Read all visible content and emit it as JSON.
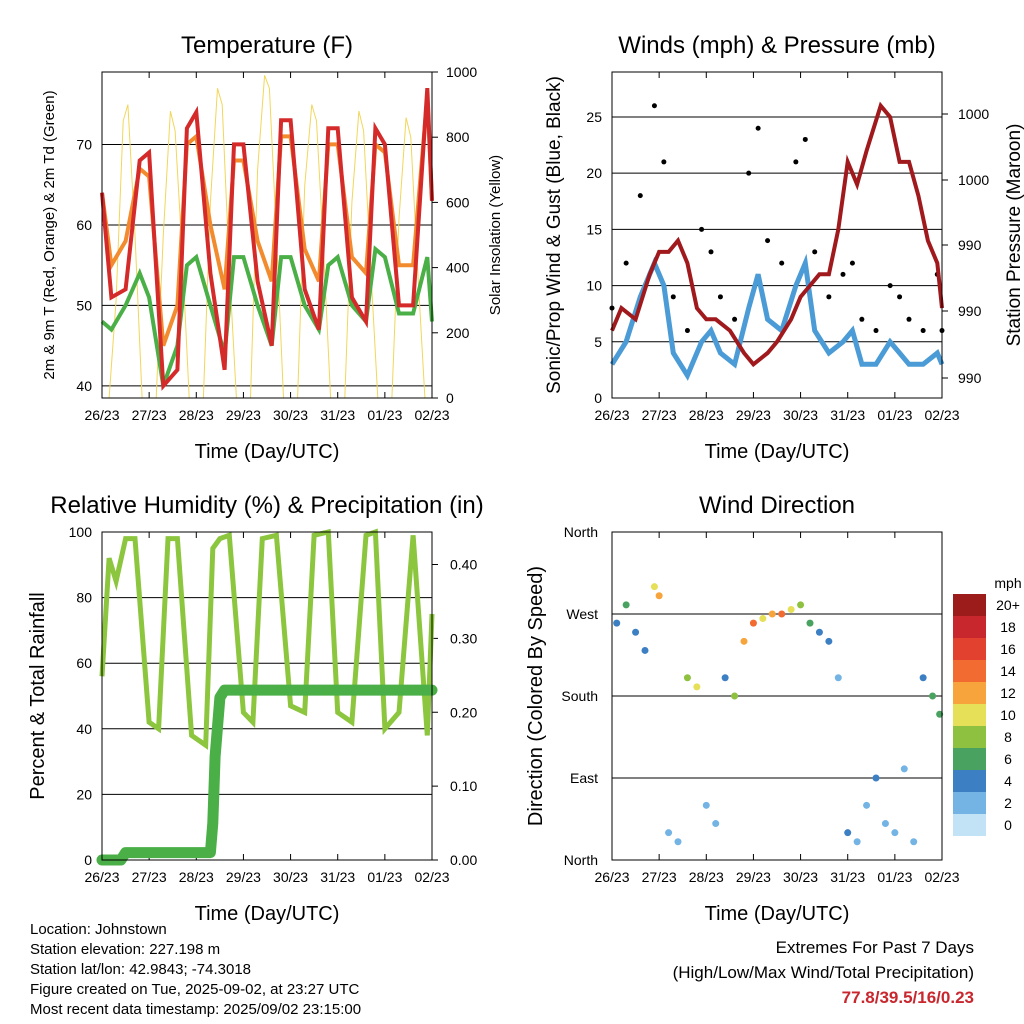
{
  "panels": {
    "temperature": {
      "title": "Temperature (F)",
      "xlabel": "Time (Day/UTC)",
      "ylabel_left": "2m & 9m T (Red, Orange) & 2m Td (Green)",
      "ylabel_right": "Solar Insolation (Yellow)"
    },
    "winds": {
      "title": "Winds (mph) & Pressure (mb)",
      "xlabel": "Time (Day/UTC)",
      "ylabel_left": "Sonic/Prop Wind & Gust (Blue, Black)",
      "ylabel_right": "Station Pressure (Maroon)"
    },
    "humidity": {
      "title": "Relative Humidity (%) & Precipitation (in)",
      "xlabel": "Time (Day/UTC)",
      "ylabel_left": "Percent & Total Rainfall"
    },
    "direction": {
      "title": "Wind Direction",
      "xlabel": "Time (Day/UTC)",
      "ylabel_left": "Direction (Colored By Speed)",
      "colorbar_title": "mph"
    }
  },
  "info": {
    "location": "Location: Johnstown",
    "elevation": "Station elevation: 227.198 m",
    "latlon": "Station lat/lon: 42.9843; -74.3018",
    "created": "Figure created on Tue, 2025-09-02, at 23:27 UTC",
    "recent": "Most recent data timestamp: 2025/09/02 23:15:00"
  },
  "extremes": {
    "line1": "Extremes For Past 7 Days",
    "line2": "(High/Low/Max Wind/Total Precipitation)",
    "values": "77.8/39.5/16/0.23"
  },
  "colors": {
    "temp2m": "#d42a2a",
    "temp9m": "#f28a2e",
    "dewpoint": "#4aaf46",
    "solar": "#f2d65a",
    "wind": "#4a9bd6",
    "gust": "#000000",
    "pressure": "#a0191d",
    "rh": "#8cc63f",
    "precip": "#4aaf46"
  },
  "chart_data": [
    {
      "type": "line",
      "title": "Temperature (F)",
      "xlabel": "Time (Day/UTC)",
      "ylabel": "2m & 9m T (Red, Orange) & 2m Td (Green)",
      "y2label": "Solar Insolation (Yellow)",
      "x_ticks": [
        "26/23",
        "27/23",
        "28/23",
        "29/23",
        "30/23",
        "31/23",
        "01/23",
        "02/23"
      ],
      "y_ticks": [
        40,
        50,
        60,
        70
      ],
      "y2_ticks": [
        0,
        200,
        400,
        600,
        800,
        1000
      ],
      "ylim": [
        38.5,
        79
      ],
      "y2lim": [
        0,
        1000
      ],
      "xlim": [
        0,
        7
      ],
      "series": [
        {
          "name": "2m T (Red)",
          "x": [
            0,
            0.2,
            0.5,
            0.8,
            1.0,
            1.3,
            1.6,
            1.8,
            2.0,
            2.3,
            2.6,
            2.8,
            3.0,
            3.3,
            3.6,
            3.8,
            4.0,
            4.3,
            4.6,
            4.8,
            5.0,
            5.3,
            5.6,
            5.8,
            6.0,
            6.3,
            6.6,
            6.9,
            7.0
          ],
          "values": [
            64,
            51,
            52,
            68,
            69,
            40,
            42,
            72,
            74,
            54,
            42,
            70,
            70,
            53,
            45,
            73,
            73,
            52,
            47,
            72,
            72,
            51,
            48,
            72,
            70,
            50,
            50,
            77,
            63
          ]
        },
        {
          "name": "9m T (Orange)",
          "x": [
            0,
            0.2,
            0.5,
            0.8,
            1.0,
            1.3,
            1.6,
            1.8,
            2.0,
            2.3,
            2.6,
            2.8,
            3.0,
            3.3,
            3.6,
            3.8,
            4.0,
            4.3,
            4.6,
            4.8,
            5.0,
            5.3,
            5.6,
            5.8,
            6.0,
            6.3,
            6.6,
            6.9,
            7.0
          ],
          "values": [
            64,
            55,
            58,
            67,
            66,
            45,
            50,
            70,
            71,
            60,
            52,
            68,
            68,
            58,
            53,
            71,
            71,
            57,
            53,
            70,
            70,
            56,
            54,
            70,
            69,
            55,
            55,
            76,
            63
          ]
        },
        {
          "name": "2m Td (Green)",
          "x": [
            0,
            0.2,
            0.5,
            0.8,
            1.0,
            1.3,
            1.6,
            1.8,
            2.0,
            2.3,
            2.6,
            2.8,
            3.0,
            3.3,
            3.6,
            3.8,
            4.0,
            4.3,
            4.6,
            4.8,
            5.0,
            5.3,
            5.6,
            5.8,
            6.0,
            6.3,
            6.6,
            6.9,
            7.0
          ],
          "values": [
            48,
            47,
            50,
            54,
            51,
            40,
            45,
            55,
            56,
            50,
            44,
            56,
            56,
            50,
            45,
            56,
            56,
            50,
            47,
            55,
            56,
            50,
            48,
            57,
            56,
            49,
            49,
            56,
            48
          ]
        },
        {
          "name": "Solar Insolation (Yellow)",
          "x": [
            0.15,
            0.3,
            0.45,
            0.55,
            0.7,
            0.85,
            1.15,
            1.3,
            1.45,
            1.55,
            1.7,
            1.85,
            2.15,
            2.3,
            2.45,
            2.55,
            2.7,
            2.85,
            3.15,
            3.3,
            3.45,
            3.55,
            3.7,
            3.85,
            4.15,
            4.3,
            4.45,
            4.55,
            4.7,
            4.85,
            5.15,
            5.3,
            5.45,
            5.55,
            5.7,
            5.85,
            6.15,
            6.3,
            6.45,
            6.55,
            6.7,
            6.85
          ],
          "values": [
            0,
            300,
            850,
            900,
            500,
            0,
            0,
            500,
            880,
            820,
            450,
            0,
            0,
            600,
            950,
            900,
            400,
            0,
            0,
            700,
            990,
            950,
            500,
            0,
            0,
            650,
            900,
            850,
            450,
            0,
            0,
            600,
            880,
            820,
            400,
            0,
            0,
            550,
            860,
            800,
            380,
            0
          ]
        }
      ]
    },
    {
      "type": "scatter",
      "title": "Winds (mph) & Pressure (mb)",
      "xlabel": "Time (Day/UTC)",
      "ylabel": "Sonic/Prop Wind & Gust (Blue, Black)",
      "y2label": "Station Pressure (Maroon)",
      "x_ticks": [
        "26/23",
        "27/23",
        "28/23",
        "29/23",
        "30/23",
        "31/23",
        "01/23",
        "02/23"
      ],
      "y_ticks": [
        0,
        5,
        10,
        15,
        20,
        25
      ],
      "y2_tick_labels": [
        "990",
        "990",
        "990",
        "1000",
        "1000"
      ],
      "ylim": [
        0,
        29
      ],
      "xlim": [
        0,
        7
      ],
      "series": [
        {
          "name": "Wind (Blue)",
          "x": [
            0,
            0.3,
            0.6,
            0.9,
            1.1,
            1.3,
            1.6,
            1.9,
            2.1,
            2.3,
            2.6,
            2.9,
            3.1,
            3.3,
            3.6,
            3.9,
            4.1,
            4.3,
            4.6,
            4.9,
            5.1,
            5.3,
            5.6,
            5.9,
            6.1,
            6.3,
            6.6,
            6.9,
            7.0
          ],
          "values": [
            3,
            5,
            9,
            12,
            10,
            4,
            2,
            5,
            6,
            4,
            3,
            8,
            11,
            7,
            6,
            10,
            12,
            6,
            4,
            5,
            6,
            3,
            3,
            5,
            4,
            3,
            3,
            4,
            3
          ]
        },
        {
          "name": "Gust (Black)",
          "x": [
            0,
            0.3,
            0.6,
            0.9,
            1.1,
            1.3,
            1.6,
            1.9,
            2.1,
            2.3,
            2.6,
            2.9,
            3.1,
            3.3,
            3.6,
            3.9,
            4.1,
            4.3,
            4.6,
            4.9,
            5.1,
            5.3,
            5.6,
            5.9,
            6.1,
            6.3,
            6.6,
            6.9,
            7.0
          ],
          "values": [
            8,
            12,
            18,
            26,
            21,
            9,
            6,
            15,
            13,
            9,
            7,
            20,
            24,
            14,
            12,
            21,
            23,
            13,
            9,
            11,
            12,
            7,
            6,
            10,
            9,
            7,
            6,
            11,
            6
          ]
        },
        {
          "name": "Station Pressure (Maroon)",
          "x": [
            0,
            0.2,
            0.5,
            0.8,
            1.0,
            1.2,
            1.4,
            1.6,
            1.8,
            2.0,
            2.2,
            2.5,
            2.8,
            3.0,
            3.3,
            3.5,
            3.8,
            4.0,
            4.2,
            4.4,
            4.6,
            4.8,
            5.0,
            5.2,
            5.4,
            5.7,
            5.9,
            6.1,
            6.3,
            6.5,
            6.7,
            6.9,
            7.0
          ],
          "values": [
            6,
            8,
            7,
            11,
            13,
            13,
            14,
            12,
            8,
            7,
            7,
            6,
            4,
            3,
            4,
            5,
            7,
            9,
            10,
            11,
            11,
            15,
            21,
            19,
            22,
            26,
            25,
            21,
            21,
            18,
            14,
            12,
            8
          ]
        }
      ]
    },
    {
      "type": "line",
      "title": "Relative Humidity (%) & Precipitation (in)",
      "xlabel": "Time (Day/UTC)",
      "ylabel": "Percent & Total Rainfall",
      "x_ticks": [
        "26/23",
        "27/23",
        "28/23",
        "29/23",
        "30/23",
        "31/23",
        "01/23",
        "02/23"
      ],
      "y_ticks": [
        0,
        20,
        40,
        60,
        80,
        100
      ],
      "y2_ticks": [
        0.0,
        0.1,
        0.2,
        0.3,
        0.4
      ],
      "ylim": [
        0,
        100
      ],
      "y2lim": [
        0,
        0.444
      ],
      "xlim": [
        0,
        7
      ],
      "series": [
        {
          "name": "Relative Humidity",
          "x": [
            0,
            0.15,
            0.3,
            0.5,
            0.7,
            1.0,
            1.2,
            1.4,
            1.6,
            1.9,
            2.2,
            2.35,
            2.5,
            2.7,
            3.0,
            3.2,
            3.4,
            3.7,
            4.0,
            4.3,
            4.5,
            4.8,
            5.0,
            5.3,
            5.6,
            5.8,
            6.0,
            6.3,
            6.6,
            6.9,
            7.0
          ],
          "values": [
            56,
            92,
            85,
            98,
            98,
            42,
            40,
            98,
            98,
            38,
            35,
            95,
            98,
            99,
            45,
            42,
            98,
            99,
            47,
            45,
            99,
            100,
            45,
            42,
            99,
            100,
            40,
            45,
            99,
            38,
            75
          ]
        },
        {
          "name": "Total Precipitation",
          "x": [
            0,
            0.4,
            0.5,
            1.0,
            1.5,
            2.3,
            2.35,
            2.4,
            2.45,
            2.5,
            2.6,
            3.0,
            5.0,
            7.0
          ],
          "values": [
            0.0,
            0.0,
            0.01,
            0.01,
            0.01,
            0.01,
            0.05,
            0.14,
            0.18,
            0.22,
            0.23,
            0.23,
            0.23,
            0.23
          ]
        }
      ]
    },
    {
      "type": "scatter",
      "title": "Wind Direction",
      "xlabel": "Time (Day/UTC)",
      "ylabel": "Direction (Colored By Speed)",
      "x_ticks": [
        "26/23",
        "27/23",
        "28/23",
        "29/23",
        "30/23",
        "31/23",
        "01/23",
        "02/23"
      ],
      "y_tick_labels": [
        "North",
        "East",
        "South",
        "West",
        "North"
      ],
      "y_ticks": [
        0,
        90,
        180,
        270,
        360
      ],
      "ylim": [
        0,
        360
      ],
      "xlim": [
        0,
        7
      ],
      "colorbar": {
        "title": "mph",
        "labels": [
          "20+",
          "18",
          "16",
          "14",
          "12",
          "10",
          "8",
          "6",
          "4",
          "2",
          "0"
        ],
        "colors": [
          "#9c1c1c",
          "#c8272e",
          "#e2412f",
          "#f26b31",
          "#f7a43c",
          "#e6df58",
          "#8ec13f",
          "#4aa261",
          "#3d7fc3",
          "#74b4e5",
          "#c2e3f6"
        ]
      },
      "series": [
        {
          "name": "Direction",
          "x": [
            0.1,
            0.3,
            0.5,
            0.7,
            0.9,
            1.0,
            1.2,
            1.4,
            1.6,
            1.8,
            2.0,
            2.2,
            2.4,
            2.6,
            2.8,
            3.0,
            3.2,
            3.4,
            3.6,
            3.8,
            4.0,
            4.2,
            4.4,
            4.6,
            4.8,
            5.0,
            5.2,
            5.4,
            5.6,
            5.8,
            6.0,
            6.2,
            6.4,
            6.6,
            6.8,
            6.95
          ],
          "values": [
            260,
            280,
            250,
            230,
            300,
            290,
            30,
            20,
            200,
            190,
            60,
            40,
            200,
            180,
            240,
            260,
            265,
            270,
            270,
            275,
            280,
            260,
            250,
            240,
            200,
            30,
            20,
            60,
            90,
            40,
            30,
            100,
            20,
            200,
            180,
            160
          ],
          "speeds": [
            4,
            6,
            3,
            3,
            10,
            12,
            2,
            2,
            8,
            10,
            1,
            1,
            4,
            8,
            12,
            14,
            10,
            12,
            14,
            10,
            8,
            6,
            4,
            4,
            2,
            3,
            2,
            2,
            3,
            2,
            2,
            2,
            1,
            4,
            6,
            5
          ]
        }
      ]
    }
  ]
}
